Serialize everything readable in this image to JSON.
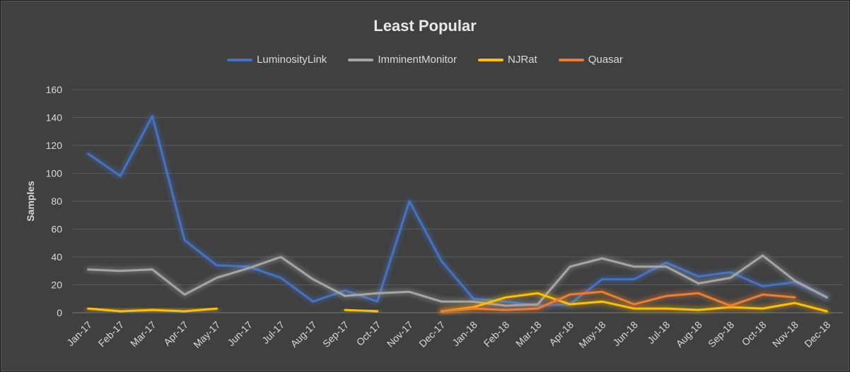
{
  "chart_data": {
    "type": "line",
    "title": "Least Popular",
    "ylabel": "Samples",
    "xlabel": "",
    "ylim": [
      0,
      160
    ],
    "yticks": [
      0,
      20,
      40,
      60,
      80,
      100,
      120,
      140,
      160
    ],
    "grid": true,
    "legend_position": "top",
    "categories": [
      "Jan-17",
      "Feb-17",
      "Mar-17",
      "Apr-17",
      "May-17",
      "Jun-17",
      "Jul-17",
      "Aug-17",
      "Sep-17",
      "Oct-17",
      "Nov-17",
      "Dec-17",
      "Jan-18",
      "Feb-18",
      "Mar-18",
      "Apr-18",
      "May-18",
      "Jun-18",
      "Jul-18",
      "Aug-18",
      "Sep-18",
      "Oct-18",
      "Nov-18",
      "Dec-18"
    ],
    "series": [
      {
        "name": "LuminosityLink",
        "color": "#4472c4",
        "values": [
          114,
          98,
          141,
          52,
          34,
          33,
          25,
          8,
          16,
          8,
          80,
          37,
          10,
          8,
          5,
          6,
          24,
          24,
          36,
          26,
          29,
          19,
          22,
          11
        ]
      },
      {
        "name": "ImminentMonitor",
        "color": "#a5a5a5",
        "values": [
          31,
          30,
          31,
          13,
          25,
          32,
          40,
          24,
          12,
          14,
          15,
          8,
          8,
          5,
          6,
          33,
          39,
          33,
          33,
          21,
          25,
          41,
          23,
          11
        ]
      },
      {
        "name": "NJRat",
        "color": "#ffc000",
        "values": [
          3,
          1,
          2,
          1,
          3,
          null,
          null,
          null,
          2,
          1,
          null,
          1,
          4,
          11,
          14,
          6,
          8,
          3,
          3,
          2,
          4,
          3,
          7,
          1
        ]
      },
      {
        "name": "Quasar",
        "color": "#ed7d31",
        "values": [
          null,
          null,
          null,
          null,
          null,
          null,
          null,
          null,
          null,
          null,
          null,
          1,
          3,
          2,
          3,
          13,
          15,
          6,
          12,
          14,
          5,
          13,
          11,
          null
        ]
      }
    ]
  }
}
